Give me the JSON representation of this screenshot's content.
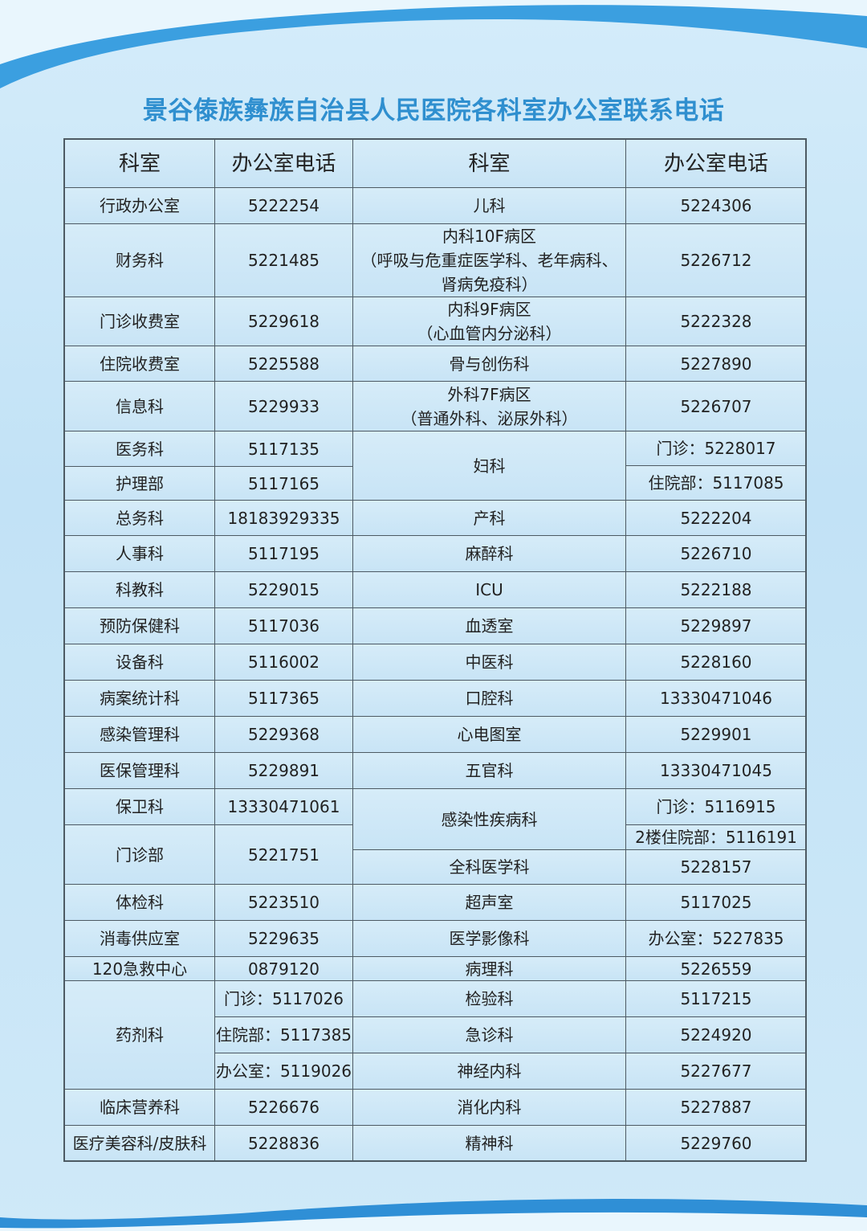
{
  "title": "景谷傣族彝族自治县人民医院各科室办公室联系电话",
  "headers": [
    "科室",
    "办公室电话",
    "科室",
    "办公室电话"
  ],
  "left": [
    {
      "dept": "行政办公室",
      "phone": "5222254"
    },
    {
      "dept": "财务科",
      "phone": "5221485"
    },
    {
      "dept": "门诊收费室",
      "phone": "5229618"
    },
    {
      "dept": "住院收费室",
      "phone": "5225588"
    },
    {
      "dept": "信息科",
      "phone": "5229933"
    },
    {
      "dept": "医务科",
      "phone": "5117135"
    },
    {
      "dept": "护理部",
      "phone": "5117165"
    },
    {
      "dept": "总务科",
      "phone": "18183929335"
    },
    {
      "dept": "人事科",
      "phone": "5117195"
    },
    {
      "dept": "科教科",
      "phone": "5229015"
    },
    {
      "dept": "预防保健科",
      "phone": "5117036"
    },
    {
      "dept": "设备科",
      "phone": "5116002"
    },
    {
      "dept": "病案统计科",
      "phone": "5117365"
    },
    {
      "dept": "感染管理科",
      "phone": "5229368"
    },
    {
      "dept": "医保管理科",
      "phone": "5229891"
    },
    {
      "dept": "保卫科",
      "phone": "13330471061"
    },
    {
      "dept": "门诊部",
      "phone": "5221751"
    },
    {
      "dept": "体检科",
      "phone": "5223510"
    },
    {
      "dept": "消毒供应室",
      "phone": "5229635"
    },
    {
      "dept": "120急救中心",
      "phone": "0879120"
    },
    {
      "dept": "药剂科",
      "phone": [
        "门诊：5117026",
        "住院部：5117385",
        "办公室：5119026"
      ]
    },
    {
      "dept": "临床营养科",
      "phone": "5226676"
    },
    {
      "dept": "医疗美容科/皮肤科",
      "phone": "5228836"
    }
  ],
  "right": [
    {
      "dept": "儿科",
      "phone": "5224306"
    },
    {
      "dept": "内科10F病区\n（呼吸与危重症医学科、老年病科、\n肾病免疫科）",
      "phone": "5226712"
    },
    {
      "dept": "内科9F病区\n（心血管内分泌科）",
      "phone": "5222328"
    },
    {
      "dept": "骨与创伤科",
      "phone": "5227890"
    },
    {
      "dept": "外科7F病区\n（普通外科、泌尿外科）",
      "phone": "5226707"
    },
    {
      "dept": "妇科",
      "phone": [
        "门诊：5228017",
        "住院部：5117085"
      ]
    },
    {
      "dept": "产科",
      "phone": "5222204"
    },
    {
      "dept": "麻醉科",
      "phone": "5226710"
    },
    {
      "dept": "ICU",
      "phone": "5222188"
    },
    {
      "dept": "血透室",
      "phone": "5229897"
    },
    {
      "dept": "中医科",
      "phone": "5228160"
    },
    {
      "dept": "口腔科",
      "phone": "13330471046"
    },
    {
      "dept": "心电图室",
      "phone": "5229901"
    },
    {
      "dept": "五官科",
      "phone": "13330471045"
    },
    {
      "dept": "感染性疾病科",
      "phone": [
        "门诊：5116915",
        "2楼住院部：5116191"
      ]
    },
    {
      "dept": "全科医学科",
      "phone": "5228157"
    },
    {
      "dept": "超声室",
      "phone": "5117025"
    },
    {
      "dept": "医学影像科",
      "phone": "办公室：5227835"
    },
    {
      "dept": "病理科",
      "phone": "5226559"
    },
    {
      "dept": "检验科",
      "phone": "5117215"
    },
    {
      "dept": "急诊科",
      "phone": "5224920"
    },
    {
      "dept": "神经内科",
      "phone": "5227677"
    },
    {
      "dept": "消化内科",
      "phone": "5227887"
    },
    {
      "dept": "精神科",
      "phone": "5229760"
    }
  ],
  "colors": {
    "title": "#2f8fcf",
    "border": "#4d5a63",
    "cell": "#cfe8f7"
  }
}
